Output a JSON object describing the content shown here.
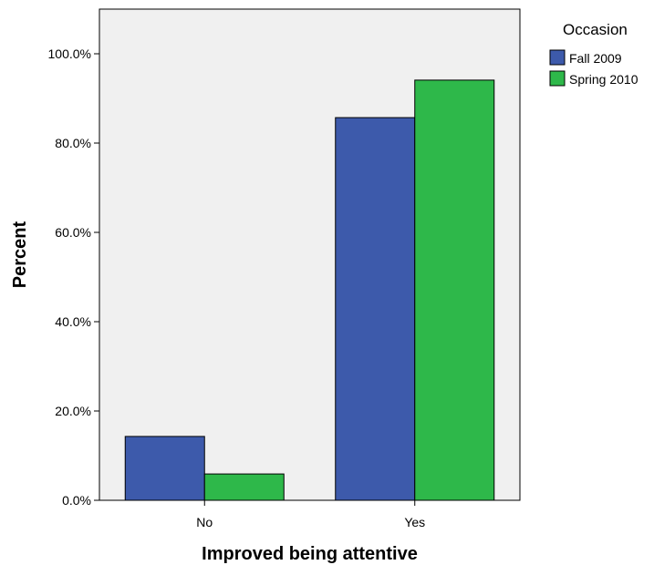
{
  "chart_data": {
    "type": "bar",
    "xlabel": "Improved  being attentive",
    "ylabel": "Percent",
    "categories": [
      "No",
      "Yes"
    ],
    "series": [
      {
        "name": "Fall 2009",
        "values": [
          14.3,
          85.7
        ],
        "color": "#3d5aab"
      },
      {
        "name": "Spring 2010",
        "values": [
          5.9,
          94.1
        ],
        "color": "#2eb84a"
      }
    ],
    "ylim": [
      0,
      110
    ],
    "yticks": [
      0,
      20,
      40,
      60,
      80,
      100
    ],
    "ytick_labels": [
      "0.0%",
      "20.0%",
      "40.0%",
      "60.0%",
      "80.0%",
      "100.0%"
    ],
    "legend": {
      "title": "Occasion",
      "placement": "top-right"
    },
    "plot_background": "#f0f0f0",
    "grid": false
  }
}
